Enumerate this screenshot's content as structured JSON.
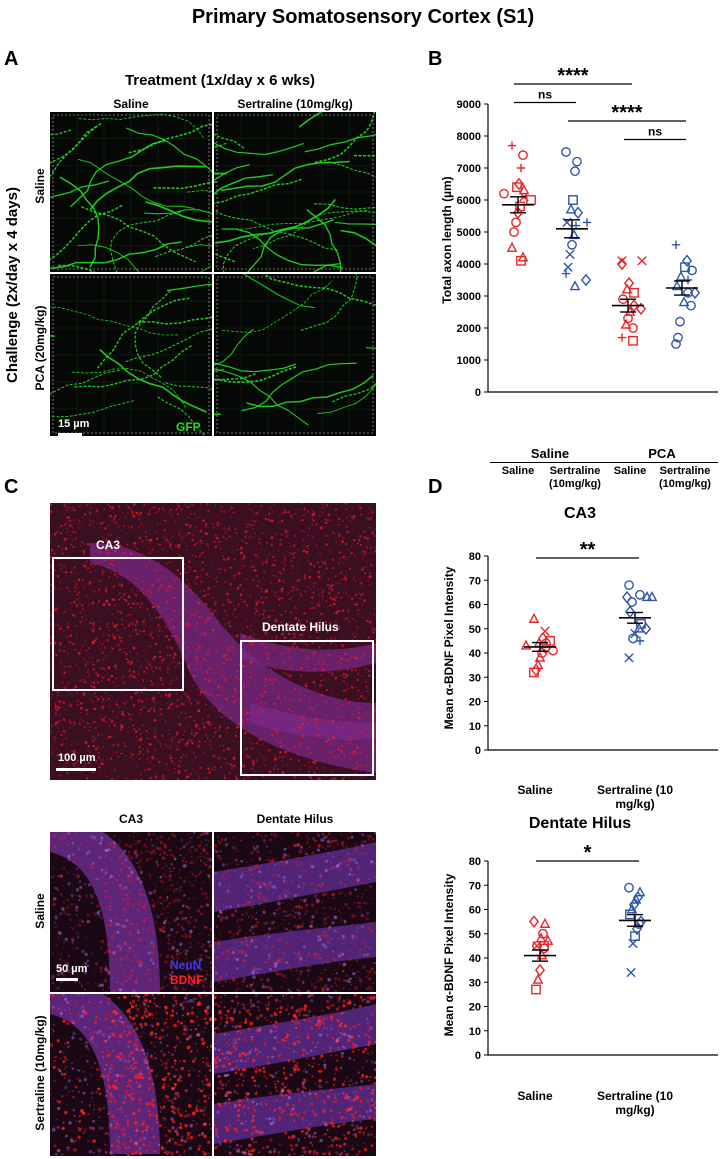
{
  "figure_title": "Primary Somatosensory Cortex (S1)",
  "panel_letters": {
    "a": "A",
    "b": "B",
    "c": "C",
    "d": "D"
  },
  "panelA": {
    "header": "Treatment (1x/day x 6 wks)",
    "col_labels": [
      "Saline",
      "Sertraline (10mg/kg)"
    ],
    "challenge_label": "Challenge (2x/day x 4 days)",
    "row_labels": [
      "Saline",
      "PCA (20mg/kg)"
    ],
    "scale_bar": "15 µm",
    "channel": "GFP",
    "colors": {
      "axon": "#22dd22",
      "background": "#000000"
    }
  },
  "panelC": {
    "overview_scale": "100 µm",
    "regions": [
      "CA3",
      "Dentate Hilus"
    ],
    "col_labels": [
      "CA3",
      "Dentate Hilus"
    ],
    "row_labels": [
      "Saline",
      "Sertraline (10mg/kg)"
    ],
    "scale_bar": "50 µm",
    "channels": [
      "NeuN",
      "BDNF"
    ],
    "colors": {
      "neun": "#3333ff",
      "bdnf": "#ff2222"
    }
  },
  "chart_data": [
    {
      "id": "B",
      "type": "scatter",
      "ylabel": "Total axon length (µm)",
      "ylim": [
        0,
        9000
      ],
      "yticks": [
        0,
        1000,
        2000,
        3000,
        4000,
        5000,
        6000,
        7000,
        8000,
        9000
      ],
      "categories": [
        "Saline",
        "Sertraline (10mg/kg)",
        "Saline",
        "Sertraline (10mg/kg)"
      ],
      "group_labels": [
        "Saline",
        "PCA"
      ],
      "significance": [
        {
          "from": 0,
          "to": 2,
          "label": "****",
          "level": 1
        },
        {
          "from": 0,
          "to": 1,
          "label": "ns",
          "level": 2
        },
        {
          "from": 1,
          "to": 3,
          "label": "****",
          "level": 3
        },
        {
          "from": 2,
          "to": 3,
          "label": "ns",
          "level": 4
        }
      ],
      "series": [
        {
          "color": "#e8262a",
          "mean": 5850,
          "sem": 250,
          "points": [
            [
              7700,
              "plus"
            ],
            [
              7400,
              "circle"
            ],
            [
              7000,
              "plus"
            ],
            [
              6500,
              "diamond"
            ],
            [
              6400,
              "square"
            ],
            [
              6300,
              "triangle"
            ],
            [
              6200,
              "circle"
            ],
            [
              6100,
              "cross"
            ],
            [
              6000,
              "square"
            ],
            [
              5800,
              "square"
            ],
            [
              5600,
              "diamond"
            ],
            [
              5300,
              "circle"
            ],
            [
              5000,
              "circle"
            ],
            [
              4500,
              "triangle"
            ],
            [
              4200,
              "triangle"
            ],
            [
              4100,
              "square"
            ]
          ]
        },
        {
          "color": "#2f56a8",
          "mean": 5100,
          "sem": 280,
          "points": [
            [
              7500,
              "circle"
            ],
            [
              7200,
              "circle"
            ],
            [
              6900,
              "circle"
            ],
            [
              6000,
              "square"
            ],
            [
              5700,
              "triangle"
            ],
            [
              5600,
              "diamond"
            ],
            [
              5300,
              "cross"
            ],
            [
              5300,
              "plus"
            ],
            [
              5200,
              "plus"
            ],
            [
              4900,
              "triangle"
            ],
            [
              4600,
              "circle"
            ],
            [
              4300,
              "cross"
            ],
            [
              3900,
              "cross"
            ],
            [
              3700,
              "plus"
            ],
            [
              3500,
              "diamond"
            ],
            [
              3300,
              "triangle"
            ]
          ]
        },
        {
          "color": "#e8262a",
          "mean": 2700,
          "sem": 200,
          "points": [
            [
              4100,
              "cross"
            ],
            [
              4100,
              "cross"
            ],
            [
              4000,
              "diamond"
            ],
            [
              3400,
              "diamond"
            ],
            [
              3200,
              "triangle"
            ],
            [
              3100,
              "square"
            ],
            [
              2900,
              "circle"
            ],
            [
              2700,
              "diamond"
            ],
            [
              2600,
              "diamond"
            ],
            [
              2500,
              "triangle"
            ],
            [
              2300,
              "circle"
            ],
            [
              2100,
              "triangle"
            ],
            [
              2000,
              "circle"
            ],
            [
              1700,
              "plus"
            ],
            [
              1600,
              "square"
            ]
          ]
        },
        {
          "color": "#2f56a8",
          "mean": 3250,
          "sem": 220,
          "points": [
            [
              4600,
              "plus"
            ],
            [
              4100,
              "diamond"
            ],
            [
              3900,
              "square"
            ],
            [
              3800,
              "circle"
            ],
            [
              3600,
              "triangle"
            ],
            [
              3500,
              "plus"
            ],
            [
              3300,
              "triangle"
            ],
            [
              3100,
              "circle"
            ],
            [
              3100,
              "diamond"
            ],
            [
              2800,
              "triangle"
            ],
            [
              2700,
              "circle"
            ],
            [
              2200,
              "circle"
            ],
            [
              1700,
              "circle"
            ],
            [
              1500,
              "circle"
            ]
          ]
        }
      ]
    },
    {
      "id": "D-CA3",
      "type": "scatter",
      "title": "CA3",
      "ylabel": "Mean α-BDNF Pixel Intensity",
      "ylim": [
        0,
        80
      ],
      "yticks": [
        0,
        10,
        20,
        30,
        40,
        50,
        60,
        70,
        80
      ],
      "categories": [
        "Saline",
        "Sertraline (10 mg/kg)"
      ],
      "significance": [
        {
          "from": 0,
          "to": 1,
          "label": "**"
        }
      ],
      "series": [
        {
          "color": "#e8262a",
          "mean": 42.5,
          "sem": 1.8,
          "points": [
            [
              54,
              "triangle"
            ],
            [
              49,
              "cross"
            ],
            [
              46,
              "diamond"
            ],
            [
              45,
              "square"
            ],
            [
              44,
              "triangle"
            ],
            [
              44,
              "circle"
            ],
            [
              43,
              "triangle"
            ],
            [
              42,
              "diamond"
            ],
            [
              41,
              "circle"
            ],
            [
              40,
              "circle"
            ],
            [
              38,
              "triangle"
            ],
            [
              35,
              "triangle"
            ],
            [
              33,
              "diamond"
            ],
            [
              32,
              "square"
            ]
          ]
        },
        {
          "color": "#2f56a8",
          "mean": 54.5,
          "sem": 2.2,
          "points": [
            [
              68,
              "circle"
            ],
            [
              64,
              "circle"
            ],
            [
              63,
              "triangle"
            ],
            [
              63,
              "diamond"
            ],
            [
              63,
              "triangle"
            ],
            [
              61,
              "circle"
            ],
            [
              57,
              "diamond"
            ],
            [
              52,
              "square"
            ],
            [
              50,
              "triangle"
            ],
            [
              50,
              "diamond"
            ],
            [
              48,
              "cross"
            ],
            [
              46,
              "circle"
            ],
            [
              45,
              "plus"
            ],
            [
              38,
              "cross"
            ]
          ]
        }
      ]
    },
    {
      "id": "D-DH",
      "type": "scatter",
      "title": "Dentate Hilus",
      "ylabel": "Mean α-BDNF Pixel Intensity",
      "ylim": [
        0,
        80
      ],
      "yticks": [
        0,
        10,
        20,
        30,
        40,
        50,
        60,
        70,
        80
      ],
      "categories": [
        "Saline",
        "Sertraline (10 mg/kg)"
      ],
      "significance": [
        {
          "from": 0,
          "to": 1,
          "label": "*"
        }
      ],
      "series": [
        {
          "color": "#e8262a",
          "mean": 41,
          "sem": 2.3,
          "points": [
            [
              55,
              "diamond"
            ],
            [
              54,
              "triangle"
            ],
            [
              50,
              "circle"
            ],
            [
              48,
              "triangle"
            ],
            [
              47,
              "triangle"
            ],
            [
              45,
              "circle"
            ],
            [
              45,
              "square"
            ],
            [
              45,
              "cross"
            ],
            [
              44,
              "circle"
            ],
            [
              41,
              "triangle"
            ],
            [
              35,
              "diamond"
            ],
            [
              31,
              "triangle"
            ],
            [
              27,
              "square"
            ]
          ]
        },
        {
          "color": "#2f56a8",
          "mean": 55.5,
          "sem": 2.4,
          "points": [
            [
              69,
              "circle"
            ],
            [
              67,
              "triangle"
            ],
            [
              65,
              "diamond"
            ],
            [
              64,
              "triangle"
            ],
            [
              62,
              "diamond"
            ],
            [
              60,
              "triangle"
            ],
            [
              58,
              "square"
            ],
            [
              55,
              "diamond"
            ],
            [
              54,
              "circle"
            ],
            [
              52,
              "diamond"
            ],
            [
              49,
              "square"
            ],
            [
              46,
              "cross"
            ],
            [
              34,
              "cross"
            ]
          ]
        }
      ]
    }
  ]
}
